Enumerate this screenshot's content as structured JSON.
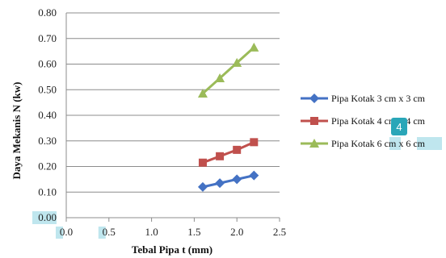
{
  "chart_data": {
    "type": "line",
    "xlabel": "Tebal Pipa t (mm)",
    "ylabel": "Daya Mekanis N (kw)",
    "xlim": [
      0,
      2.5
    ],
    "ylim": [
      0,
      0.8
    ],
    "x_ticks": [
      "0.0",
      "0.5",
      "1.0",
      "1.5",
      "2.0",
      "2.5"
    ],
    "y_ticks": [
      "0.00",
      "0.10",
      "0.20",
      "0.30",
      "0.40",
      "0.50",
      "0.60",
      "0.70",
      "0.80"
    ],
    "grid": "horizontal",
    "legend_position": "right",
    "series": [
      {
        "name": "Pipa Kotak 3 cm x 3 cm",
        "color": "#4472c4",
        "marker": "diamond",
        "x": [
          1.6,
          1.8,
          2.0,
          2.2
        ],
        "y": [
          0.12,
          0.135,
          0.15,
          0.165
        ]
      },
      {
        "name": "Pipa Kotak 4 cm x 4 cm",
        "color": "#c0504d",
        "marker": "square",
        "x": [
          1.6,
          1.8,
          2.0,
          2.2
        ],
        "y": [
          0.215,
          0.24,
          0.265,
          0.295
        ]
      },
      {
        "name": "Pipa Kotak 6 cm x 6 cm",
        "color": "#9bbb59",
        "marker": "triangle",
        "x": [
          1.6,
          1.8,
          2.0,
          2.2
        ],
        "y": [
          0.485,
          0.545,
          0.605,
          0.665
        ]
      }
    ]
  },
  "overlay_badge": "4"
}
